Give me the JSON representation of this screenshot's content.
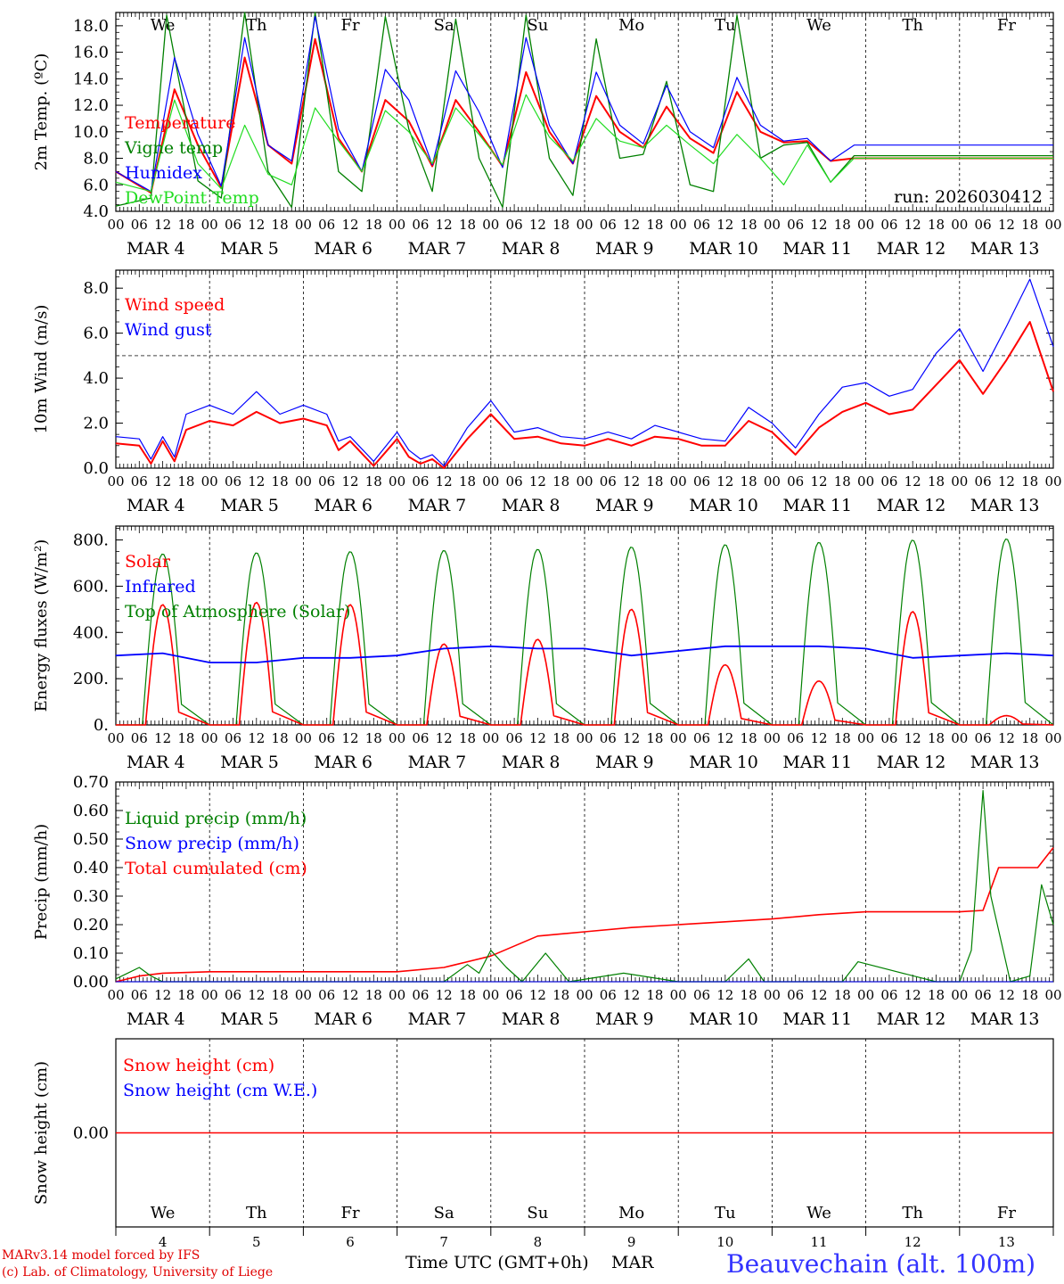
{
  "days": [
    {
      "date": "MAR  4",
      "abbr": "We",
      "num": "4",
      "weekend": false
    },
    {
      "date": "MAR  5",
      "abbr": "Th",
      "num": "5",
      "weekend": false
    },
    {
      "date": "MAR  6",
      "abbr": "Fr",
      "num": "6",
      "weekend": false
    },
    {
      "date": "MAR  7",
      "abbr": "Sa",
      "num": "7",
      "weekend": true
    },
    {
      "date": "MAR  8",
      "abbr": "Su",
      "num": "8",
      "weekend": true
    },
    {
      "date": "MAR  9",
      "abbr": "Mo",
      "num": "9",
      "weekend": false
    },
    {
      "date": "MAR 10",
      "abbr": "Tu",
      "num": "10",
      "weekend": false
    },
    {
      "date": "MAR 11",
      "abbr": "We",
      "num": "11",
      "weekend": false
    },
    {
      "date": "MAR 12",
      "abbr": "Th",
      "num": "12",
      "weekend": false
    },
    {
      "date": "MAR 13",
      "abbr": "Fr",
      "num": "13",
      "weekend": false
    }
  ],
  "hour_labels": [
    "00",
    "06",
    "12",
    "18"
  ],
  "last_hour_label": "00",
  "colors": {
    "red": "#ff0000",
    "green": "#008000",
    "blue": "#0000ff",
    "lime": "#22dd22",
    "weekend": "#ff0000",
    "station": "#3333ff"
  },
  "footer": {
    "model": "MARv3.14 model forced by IFS",
    "lab": "(c) Lab. of Climatology, University of Liege",
    "xlabel": "Time UTC (GMT+0h)",
    "month": "MAR",
    "station": "Beauvechain (alt. 100m)"
  },
  "chart_data": [
    {
      "type": "line",
      "name": "temperature",
      "ylabel": "2m Temp. (ºC)",
      "ylim": [
        4,
        19
      ],
      "yticks": [
        4,
        6,
        8,
        10,
        12,
        14,
        16,
        18
      ],
      "ytick_labels": [
        "4.0",
        "6.0",
        "8.0",
        "10.0",
        "12.0",
        "14.0",
        "16.0",
        "18.0"
      ],
      "show_days": true,
      "annotation": "run: 2026030412",
      "legend": [
        {
          "label": "Temperature",
          "color": "#ff0000"
        },
        {
          "label": "Vigne temp",
          "color": "#008000"
        },
        {
          "label": "Humidex",
          "color": "#0000ff"
        },
        {
          "label": "DewPoint Temp",
          "color": "#22dd22"
        }
      ],
      "series": [
        {
          "name": "Temperature",
          "color": "#ff0000",
          "width": 2,
          "x": [
            0,
            9,
            15,
            21,
            27,
            33,
            39,
            45,
            51,
            57,
            63,
            69,
            75,
            81,
            87,
            93,
            99,
            105,
            111,
            117,
            123,
            129,
            135,
            141,
            147,
            153,
            159,
            165,
            171,
            177,
            183,
            189,
            195,
            201,
            207,
            213,
            219,
            225,
            231,
            237,
            240
          ],
          "y": [
            7.0,
            5.4,
            13.2,
            9.0,
            5.8,
            15.6,
            9.0,
            7.6,
            17.0,
            9.5,
            7.0,
            12.4,
            10.8,
            7.4,
            12.4,
            10.0,
            7.4,
            14.5,
            10.0,
            7.6,
            12.7,
            10.0,
            8.8,
            11.9,
            9.5,
            8.4,
            13.0,
            10.0,
            9.2,
            9.3,
            7.8,
            8.0,
            8.0,
            8.0,
            8.0,
            8.0,
            8.0,
            8.0,
            8.0,
            8.0,
            8.0
          ]
        },
        {
          "name": "Vigne temp",
          "color": "#008000",
          "width": 1.3,
          "x": [
            0,
            9,
            13,
            21,
            27,
            33,
            39,
            45,
            51,
            57,
            63,
            69,
            75,
            81,
            87,
            93,
            99,
            105,
            111,
            117,
            123,
            129,
            135,
            141,
            147,
            153,
            159,
            165,
            171,
            177,
            183,
            189,
            195,
            201,
            207,
            213,
            219,
            225,
            231,
            237,
            240
          ],
          "y": [
            4.4,
            5.0,
            18.8,
            6.3,
            5.0,
            19.5,
            7.0,
            4.3,
            19.0,
            7.0,
            5.5,
            18.7,
            10.2,
            5.5,
            18.5,
            8.0,
            4.3,
            18.8,
            8.0,
            5.2,
            17.0,
            8.0,
            8.3,
            13.8,
            6.0,
            5.5,
            18.8,
            8.0,
            9.0,
            9.2,
            6.2,
            8.2,
            8.2,
            8.2,
            8.2,
            8.2,
            8.2,
            8.2,
            8.2,
            8.2,
            8.2
          ]
        },
        {
          "name": "Humidex",
          "color": "#0000ff",
          "width": 1.2,
          "x": [
            0,
            9,
            15,
            21,
            27,
            33,
            39,
            45,
            51,
            57,
            63,
            69,
            75,
            81,
            87,
            93,
            99,
            105,
            111,
            117,
            123,
            129,
            135,
            141,
            147,
            153,
            159,
            165,
            171,
            177,
            183,
            189,
            195,
            201,
            207,
            213,
            219,
            225,
            231,
            237,
            240
          ],
          "y": [
            7.0,
            5.5,
            15.6,
            9.8,
            5.9,
            17.1,
            9.0,
            7.8,
            18.7,
            10.2,
            7.0,
            14.7,
            12.4,
            7.5,
            14.6,
            11.5,
            7.3,
            17.1,
            10.5,
            7.6,
            14.5,
            10.5,
            9.1,
            13.5,
            10.0,
            8.8,
            14.1,
            10.5,
            9.3,
            9.5,
            7.8,
            9.0,
            9.0,
            9.0,
            9.0,
            9.0,
            9.0,
            9.0,
            9.0,
            9.0,
            9.0
          ]
        },
        {
          "name": "DewPoint Temp",
          "color": "#22dd22",
          "width": 1.2,
          "x": [
            0,
            9,
            15,
            21,
            27,
            33,
            39,
            45,
            51,
            57,
            63,
            69,
            75,
            81,
            87,
            93,
            99,
            105,
            111,
            117,
            123,
            129,
            135,
            141,
            147,
            153,
            159,
            165,
            171,
            177,
            183,
            189,
            195,
            201,
            207,
            213,
            219,
            225,
            231,
            237,
            240
          ],
          "y": [
            6.2,
            5.5,
            12.4,
            7.6,
            5.7,
            10.5,
            6.8,
            6.0,
            11.8,
            9.3,
            7.0,
            11.6,
            10.0,
            7.6,
            11.8,
            9.8,
            7.5,
            12.8,
            9.6,
            7.8,
            11.0,
            9.3,
            8.8,
            10.5,
            9.0,
            7.6,
            9.8,
            8.0,
            6.0,
            9.0,
            6.2,
            8.0,
            8.0,
            8.0,
            8.0,
            8.0,
            8.0,
            8.0,
            8.0,
            8.0,
            8.0
          ]
        }
      ]
    },
    {
      "type": "line",
      "name": "wind",
      "ylabel": "10m Wind (m/s)",
      "ylim": [
        0,
        8.8
      ],
      "yticks": [
        0,
        2,
        4,
        6,
        8
      ],
      "ytick_labels": [
        "0.0",
        "2.0",
        "4.0",
        "6.0",
        "8.0"
      ],
      "hline": 5.0,
      "legend": [
        {
          "label": "Wind speed",
          "color": "#ff0000"
        },
        {
          "label": "Wind gust",
          "color": "#0000ff"
        }
      ],
      "series": [
        {
          "name": "Wind speed",
          "color": "#ff0000",
          "width": 2,
          "x": [
            0,
            6,
            9,
            12,
            15,
            18,
            24,
            30,
            36,
            42,
            48,
            54,
            57,
            60,
            66,
            72,
            75,
            78,
            81,
            84,
            90,
            96,
            102,
            108,
            114,
            120,
            126,
            132,
            138,
            144,
            150,
            156,
            162,
            168,
            174,
            180,
            186,
            192,
            198,
            204,
            210,
            216,
            222,
            228,
            234,
            240
          ],
          "y": [
            1.1,
            1.0,
            0.2,
            1.2,
            0.3,
            1.7,
            2.1,
            1.9,
            2.5,
            2.0,
            2.2,
            1.9,
            0.8,
            1.2,
            0.1,
            1.3,
            0.5,
            0.2,
            0.4,
            0.0,
            1.3,
            2.4,
            1.3,
            1.4,
            1.1,
            1.0,
            1.3,
            1.0,
            1.4,
            1.3,
            1.0,
            1.0,
            2.1,
            1.6,
            0.6,
            1.8,
            2.5,
            2.9,
            2.4,
            2.6,
            3.7,
            4.8,
            3.3,
            4.8,
            6.5,
            3.4
          ]
        },
        {
          "name": "Wind gust",
          "color": "#0000ff",
          "width": 1.2,
          "x": [
            0,
            6,
            9,
            12,
            15,
            18,
            24,
            30,
            36,
            42,
            48,
            54,
            57,
            60,
            66,
            72,
            75,
            78,
            81,
            84,
            90,
            96,
            102,
            108,
            114,
            120,
            126,
            132,
            138,
            144,
            150,
            156,
            162,
            168,
            174,
            180,
            186,
            192,
            198,
            204,
            210,
            216,
            222,
            228,
            234,
            240
          ],
          "y": [
            1.4,
            1.3,
            0.4,
            1.4,
            0.5,
            2.4,
            2.8,
            2.4,
            3.4,
            2.4,
            2.8,
            2.4,
            1.2,
            1.4,
            0.3,
            1.6,
            0.8,
            0.4,
            0.6,
            0.1,
            1.8,
            3.0,
            1.6,
            1.8,
            1.4,
            1.3,
            1.6,
            1.3,
            1.9,
            1.6,
            1.3,
            1.2,
            2.7,
            2.0,
            0.9,
            2.4,
            3.6,
            3.8,
            3.2,
            3.5,
            5.1,
            6.2,
            4.3,
            6.3,
            8.4,
            5.4
          ]
        }
      ]
    },
    {
      "type": "line",
      "name": "energy",
      "ylabel": "Energy fluxes (W/m²)",
      "ylim": [
        0,
        860
      ],
      "yticks": [
        0,
        200,
        400,
        600,
        800
      ],
      "ytick_labels": [
        "0.",
        "200.",
        "400.",
        "600.",
        "800."
      ],
      "legend": [
        {
          "label": "Solar",
          "color": "#ff0000"
        },
        {
          "label": "Infrared",
          "color": "#0000ff"
        },
        {
          "label": "Top of Atmosphere (Solar)",
          "color": "#008000"
        }
      ],
      "series": [
        {
          "name": "Top of Atmosphere (Solar)",
          "color": "#008000",
          "width": 1.2,
          "peaks": [
            740,
            745,
            750,
            755,
            760,
            770,
            780,
            790,
            800,
            805
          ]
        },
        {
          "name": "Solar",
          "color": "#ff0000",
          "width": 1.6,
          "peaks": [
            520,
            530,
            520,
            350,
            370,
            500,
            260,
            190,
            490,
            40
          ]
        },
        {
          "name": "Infrared",
          "color": "#0000ff",
          "width": 1.8,
          "x": [
            0,
            12,
            24,
            36,
            48,
            60,
            72,
            84,
            96,
            108,
            120,
            132,
            144,
            156,
            168,
            180,
            192,
            204,
            216,
            228,
            240
          ],
          "y": [
            300,
            310,
            270,
            270,
            290,
            290,
            300,
            330,
            340,
            330,
            330,
            300,
            320,
            340,
            340,
            340,
            330,
            290,
            300,
            310,
            300
          ]
        }
      ]
    },
    {
      "type": "line",
      "name": "precip",
      "ylabel": "Precip (mm/h)",
      "ylim": [
        0,
        0.7
      ],
      "yticks": [
        0,
        0.1,
        0.2,
        0.3,
        0.4,
        0.5,
        0.6,
        0.7
      ],
      "ytick_labels": [
        "0.00",
        "0.10",
        "0.20",
        "0.30",
        "0.40",
        "0.50",
        "0.60",
        "0.70"
      ],
      "legend": [
        {
          "label": "Liquid precip (mm/h)",
          "color": "#008000"
        },
        {
          "label": "Snow precip (mm/h)",
          "color": "#0000ff"
        },
        {
          "label": "Total cumulated (cm)",
          "color": "#ff0000"
        }
      ],
      "series": [
        {
          "name": "Total cumulated (cm)",
          "color": "#ff0000",
          "width": 1.6,
          "x": [
            0,
            6,
            12,
            24,
            48,
            72,
            84,
            90,
            96,
            108,
            120,
            132,
            144,
            156,
            168,
            180,
            192,
            208,
            216,
            222,
            226,
            232,
            236,
            240
          ],
          "y": [
            0.0,
            0.02,
            0.03,
            0.035,
            0.035,
            0.035,
            0.05,
            0.07,
            0.09,
            0.16,
            0.175,
            0.19,
            0.2,
            0.21,
            0.22,
            0.235,
            0.245,
            0.245,
            0.245,
            0.25,
            0.4,
            0.4,
            0.4,
            0.47
          ]
        },
        {
          "name": "Liquid precip (mm/h)",
          "color": "#008000",
          "width": 1.2,
          "x": [
            0,
            3,
            6,
            9,
            12,
            18,
            84,
            90,
            93,
            96,
            100,
            104,
            110,
            116,
            130,
            144,
            156,
            162,
            166,
            170,
            186,
            190,
            210,
            216,
            219,
            222,
            224,
            229,
            234,
            237,
            240
          ],
          "y": [
            0.01,
            0.03,
            0.05,
            0.02,
            0.0,
            0.0,
            0.0,
            0.06,
            0.03,
            0.11,
            0.05,
            0.0,
            0.1,
            0.0,
            0.03,
            0.0,
            0.0,
            0.08,
            0.0,
            0.0,
            0.0,
            0.07,
            0.0,
            0.0,
            0.11,
            0.67,
            0.3,
            0.0,
            0.02,
            0.34,
            0.2
          ]
        },
        {
          "name": "Snow precip (mm/h)",
          "color": "#0000ff",
          "width": 1,
          "x": [
            0,
            240
          ],
          "y": [
            0,
            0
          ]
        }
      ]
    },
    {
      "type": "line",
      "name": "snow",
      "ylabel": "Snow height (cm)",
      "ylim": [
        -1,
        1
      ],
      "yticks": [
        0
      ],
      "ytick_labels": [
        "0.00"
      ],
      "show_days_bottom": true,
      "legend": [
        {
          "label": "Snow height (cm)",
          "color": "#ff0000"
        },
        {
          "label": "Snow height (cm W.E.)",
          "color": "#0000ff"
        }
      ],
      "series": [
        {
          "name": "Snow height (cm)",
          "color": "#ff0000",
          "width": 1.4,
          "x": [
            0,
            240
          ],
          "y": [
            0,
            0
          ]
        }
      ]
    }
  ]
}
